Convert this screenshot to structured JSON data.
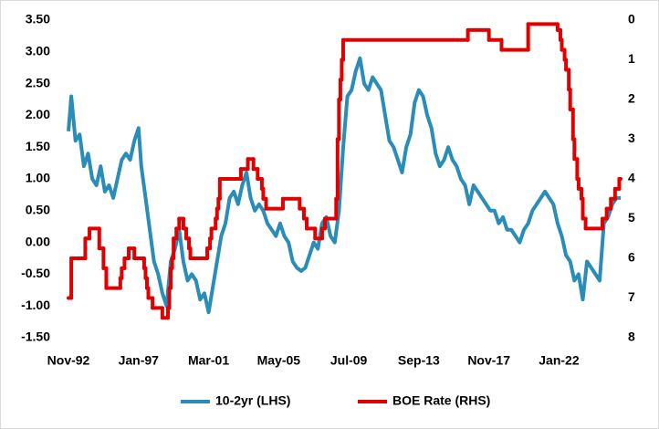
{
  "chart_data": {
    "type": "line",
    "xlim": [
      "1992-11",
      "2025-09"
    ],
    "xticks": [
      {
        "value": "1992-11",
        "label": "Nov-92"
      },
      {
        "value": "1997-01",
        "label": "Jan-97"
      },
      {
        "value": "2001-03",
        "label": "Mar-01"
      },
      {
        "value": "2005-05",
        "label": "May-05"
      },
      {
        "value": "2009-07",
        "label": "Jul-09"
      },
      {
        "value": "2013-09",
        "label": "Sep-13"
      },
      {
        "value": "2017-11",
        "label": "Nov-17"
      },
      {
        "value": "2022-01",
        "label": "Jan-22"
      }
    ],
    "ylim": [
      -1.5,
      3.5
    ],
    "yticks": [
      {
        "value": -1.5,
        "label": "-1.50"
      },
      {
        "value": -1,
        "label": "-1.00"
      },
      {
        "value": -0.5,
        "label": "-0.50"
      },
      {
        "value": 0,
        "label": "0.00"
      },
      {
        "value": 0.5,
        "label": "0.50"
      },
      {
        "value": 1,
        "label": "1.00"
      },
      {
        "value": 1.5,
        "label": "1.50"
      },
      {
        "value": 2,
        "label": "2.00"
      },
      {
        "value": 2.5,
        "label": "2.50"
      },
      {
        "value": 3,
        "label": "3.00"
      },
      {
        "value": 3.5,
        "label": "3.50"
      }
    ],
    "y2lim": [
      8,
      0
    ],
    "y2ticks": [
      0,
      1,
      2,
      3,
      4,
      5,
      6,
      7,
      8
    ],
    "legend": "bottom",
    "series": [
      {
        "name": "10-2yr (LHS)",
        "color": "#2a8cb8",
        "axis": "y",
        "x": [
          "1992-11",
          "1993-01",
          "1993-04",
          "1993-07",
          "1993-10",
          "1994-01",
          "1994-04",
          "1994-07",
          "1994-10",
          "1995-01",
          "1995-04",
          "1995-07",
          "1995-10",
          "1996-01",
          "1996-04",
          "1996-07",
          "1996-10",
          "1997-01",
          "1997-03",
          "1997-06",
          "1997-09",
          "1997-12",
          "1998-03",
          "1998-06",
          "1998-09",
          "1998-12",
          "1999-03",
          "1999-06",
          "1999-09",
          "1999-12",
          "2000-03",
          "2000-06",
          "2000-09",
          "2000-12",
          "2001-03",
          "2001-06",
          "2001-09",
          "2001-12",
          "2002-03",
          "2002-06",
          "2002-09",
          "2002-12",
          "2003-03",
          "2003-06",
          "2003-09",
          "2003-12",
          "2004-03",
          "2004-06",
          "2004-09",
          "2004-12",
          "2005-03",
          "2005-06",
          "2005-09",
          "2005-12",
          "2006-03",
          "2006-06",
          "2006-09",
          "2006-12",
          "2007-03",
          "2007-06",
          "2007-09",
          "2007-12",
          "2008-03",
          "2008-06",
          "2008-09",
          "2008-12",
          "2009-03",
          "2009-06",
          "2009-09",
          "2009-12",
          "2010-03",
          "2010-06",
          "2010-09",
          "2010-12",
          "2011-03",
          "2011-06",
          "2011-09",
          "2011-12",
          "2012-03",
          "2012-06",
          "2012-09",
          "2012-12",
          "2013-03",
          "2013-06",
          "2013-09",
          "2013-12",
          "2014-03",
          "2014-06",
          "2014-09",
          "2014-12",
          "2015-03",
          "2015-06",
          "2015-09",
          "2015-12",
          "2016-03",
          "2016-06",
          "2016-09",
          "2016-12",
          "2017-03",
          "2017-06",
          "2017-09",
          "2017-12",
          "2018-03",
          "2018-06",
          "2018-09",
          "2018-12",
          "2019-03",
          "2019-06",
          "2019-09",
          "2019-12",
          "2020-03",
          "2020-06",
          "2020-09",
          "2020-12",
          "2021-03",
          "2021-06",
          "2021-09",
          "2021-12",
          "2022-03",
          "2022-06",
          "2022-09",
          "2022-12",
          "2023-03",
          "2023-06",
          "2023-09",
          "2023-12",
          "2024-03",
          "2024-06",
          "2024-09",
          "2024-12",
          "2025-03",
          "2025-06",
          "2025-09"
        ],
        "values": [
          1.75,
          2.3,
          1.6,
          1.7,
          1.2,
          1.4,
          1.0,
          0.9,
          1.2,
          0.8,
          0.9,
          0.7,
          1.0,
          1.3,
          1.4,
          1.3,
          1.6,
          1.8,
          1.2,
          0.7,
          0.2,
          -0.3,
          -0.5,
          -0.8,
          -1.0,
          -0.3,
          -0.1,
          0.2,
          -0.3,
          -0.6,
          -0.5,
          -0.6,
          -0.9,
          -0.8,
          -1.1,
          -0.7,
          -0.3,
          0.1,
          0.3,
          0.7,
          0.8,
          0.6,
          0.9,
          1.1,
          0.7,
          0.5,
          0.6,
          0.5,
          0.3,
          0.2,
          0.1,
          0.3,
          0.1,
          0.0,
          -0.3,
          -0.4,
          -0.45,
          -0.4,
          -0.2,
          0.0,
          -0.1,
          0.3,
          0.4,
          0.1,
          0.0,
          0.5,
          1.5,
          2.3,
          2.4,
          2.7,
          2.9,
          2.5,
          2.4,
          2.6,
          2.5,
          2.4,
          2.0,
          1.6,
          1.5,
          1.3,
          1.1,
          1.5,
          1.7,
          2.2,
          2.4,
          2.3,
          2.0,
          1.8,
          1.4,
          1.2,
          1.3,
          1.5,
          1.3,
          1.2,
          1.0,
          0.9,
          0.6,
          0.9,
          0.8,
          0.7,
          0.6,
          0.5,
          0.5,
          0.3,
          0.4,
          0.2,
          0.2,
          0.1,
          0.0,
          0.2,
          0.3,
          0.5,
          0.6,
          0.7,
          0.8,
          0.7,
          0.6,
          0.3,
          0.1,
          -0.2,
          -0.3,
          -0.6,
          -0.5,
          -0.9,
          -0.3,
          -0.4,
          -0.5,
          -0.6,
          0.3,
          0.4,
          0.6,
          0.7,
          0.7
        ]
      },
      {
        "name": "BOE Rate (RHS)",
        "color": "#e00000",
        "axis": "y2",
        "step": true,
        "x": [
          "1992-11",
          "1993-01",
          "1993-11",
          "1994-02",
          "1994-09",
          "1994-12",
          "1995-02",
          "1995-12",
          "1996-01",
          "1996-03",
          "1996-06",
          "1996-10",
          "1997-05",
          "1997-06",
          "1997-07",
          "1997-08",
          "1997-11",
          "1998-06",
          "1998-10",
          "1998-11",
          "1998-12",
          "1999-01",
          "1999-02",
          "1999-04",
          "1999-06",
          "1999-09",
          "1999-11",
          "2000-01",
          "2000-02",
          "2001-02",
          "2001-04",
          "2001-05",
          "2001-08",
          "2001-09",
          "2001-10",
          "2001-11",
          "2003-02",
          "2003-07",
          "2003-11",
          "2004-02",
          "2004-05",
          "2004-06",
          "2004-08",
          "2005-08",
          "2006-08",
          "2006-11",
          "2007-01",
          "2007-07",
          "2007-12",
          "2008-02",
          "2008-10",
          "2008-11",
          "2008-12",
          "2009-01",
          "2009-02",
          "2009-03",
          "2016-08",
          "2017-11",
          "2018-08",
          "2020-03",
          "2021-12",
          "2022-02",
          "2022-03",
          "2022-05",
          "2022-06",
          "2022-08",
          "2022-09",
          "2022-11",
          "2022-12",
          "2023-02",
          "2023-03",
          "2023-05",
          "2023-06",
          "2023-08",
          "2024-08",
          "2024-11",
          "2025-02",
          "2025-05",
          "2025-08"
        ],
        "values": [
          7.0,
          6.0,
          5.5,
          5.25,
          5.75,
          6.25,
          6.75,
          6.5,
          6.25,
          6.0,
          5.75,
          6.0,
          6.25,
          6.5,
          6.75,
          7.0,
          7.25,
          7.5,
          7.25,
          6.75,
          6.25,
          6.0,
          5.5,
          5.25,
          5.0,
          5.25,
          5.5,
          5.75,
          6.0,
          5.75,
          5.5,
          5.25,
          5.0,
          4.75,
          4.5,
          4.0,
          3.75,
          3.5,
          3.75,
          4.0,
          4.25,
          4.5,
          4.75,
          4.5,
          4.75,
          5.0,
          5.25,
          5.5,
          5.25,
          5.0,
          4.5,
          3.0,
          2.0,
          1.5,
          1.0,
          0.5,
          0.25,
          0.5,
          0.75,
          0.1,
          0.25,
          0.5,
          0.75,
          1.0,
          1.25,
          1.75,
          2.25,
          3.0,
          3.5,
          4.0,
          4.25,
          4.5,
          5.0,
          5.25,
          5.0,
          4.75,
          4.5,
          4.25,
          4.0
        ]
      }
    ]
  }
}
